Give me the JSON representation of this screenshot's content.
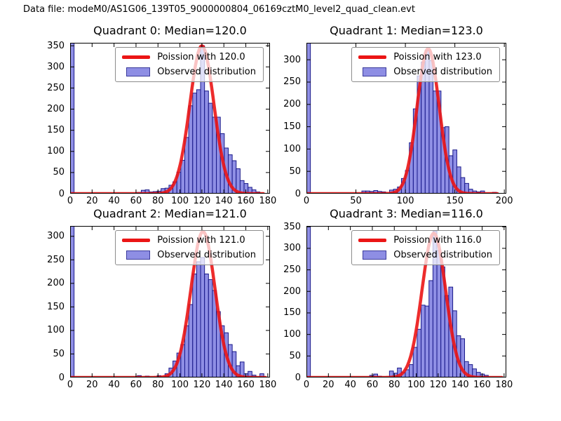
{
  "figure": {
    "title": "Data file: modeM0/AS1G06_139T05_9000000804_06169cztM0_level2_quad_clean.evt",
    "background": "#ffffff"
  },
  "colors": {
    "bar_fill": "#7b7be0",
    "bar_edge": "#1a1a8a",
    "curve": "#eb1515",
    "legend_border": "#8c8c8c",
    "axis": "#000000",
    "text": "#000000"
  },
  "chart_data": [
    {
      "type": "bar",
      "subtype": "histogram-with-fit-curve",
      "quadrant": 0,
      "title": "Quadrant 0: Median=120.0",
      "median": 120.0,
      "legend": [
        "Poission with 120.0",
        "Observed distribution"
      ],
      "legend_position": "upper right",
      "grid": false,
      "xlabel": "",
      "ylabel": "",
      "xlim": [
        0,
        182
      ],
      "ylim": [
        0,
        357
      ],
      "xticks": [
        0,
        20,
        40,
        60,
        80,
        100,
        120,
        140,
        160,
        180
      ],
      "yticks": [
        0,
        50,
        100,
        150,
        200,
        250,
        300,
        350
      ],
      "bin_width": 3.6,
      "bars": [
        [
          0,
          357
        ],
        [
          61.2,
          3
        ],
        [
          64.8,
          8
        ],
        [
          68.4,
          9
        ],
        [
          72.0,
          4
        ],
        [
          75.6,
          5
        ],
        [
          79.2,
          6
        ],
        [
          82.8,
          12
        ],
        [
          86.4,
          13
        ],
        [
          90.0,
          20
        ],
        [
          93.6,
          28
        ],
        [
          97.2,
          51
        ],
        [
          100.8,
          79
        ],
        [
          104.4,
          133
        ],
        [
          108.0,
          208
        ],
        [
          111.6,
          238
        ],
        [
          115.2,
          246
        ],
        [
          118.8,
          350
        ],
        [
          122.4,
          243
        ],
        [
          126.0,
          214
        ],
        [
          129.6,
          181
        ],
        [
          133.2,
          181
        ],
        [
          136.8,
          142
        ],
        [
          140.4,
          108
        ],
        [
          144.0,
          92
        ],
        [
          147.6,
          78
        ],
        [
          151.2,
          59
        ],
        [
          154.8,
          31
        ],
        [
          158.4,
          24
        ],
        [
          162.0,
          15
        ],
        [
          165.6,
          9
        ],
        [
          169.2,
          4
        ]
      ],
      "curve": {
        "model": "poisson-approx",
        "lambda": 120.0,
        "peak": 350,
        "range": [
          0,
          176
        ]
      }
    },
    {
      "type": "bar",
      "subtype": "histogram-with-fit-curve",
      "quadrant": 1,
      "title": "Quadrant 1: Median=123.0",
      "median": 123.0,
      "legend": [
        "Poission with 123.0",
        "Observed distribution"
      ],
      "legend_position": "upper right",
      "grid": false,
      "xlabel": "",
      "ylabel": "",
      "xlim": [
        0,
        202
      ],
      "ylim": [
        0,
        338
      ],
      "xticks": [
        0,
        50,
        100,
        150,
        200
      ],
      "yticks": [
        0,
        50,
        100,
        150,
        200,
        250,
        300
      ],
      "bin_width": 4,
      "bars": [
        [
          0,
          338
        ],
        [
          56,
          6
        ],
        [
          60,
          6
        ],
        [
          64,
          5
        ],
        [
          68,
          7
        ],
        [
          72,
          5
        ],
        [
          76,
          4
        ],
        [
          84,
          8
        ],
        [
          88,
          10
        ],
        [
          92,
          15
        ],
        [
          96,
          34
        ],
        [
          100,
          52
        ],
        [
          104,
          114
        ],
        [
          108,
          190
        ],
        [
          112,
          264
        ],
        [
          116,
          295
        ],
        [
          120,
          321
        ],
        [
          124,
          298
        ],
        [
          128,
          230
        ],
        [
          132,
          230
        ],
        [
          136,
          148
        ],
        [
          140,
          150
        ],
        [
          144,
          85
        ],
        [
          148,
          98
        ],
        [
          152,
          60
        ],
        [
          156,
          36
        ],
        [
          160,
          23
        ],
        [
          164,
          10
        ],
        [
          168,
          6
        ],
        [
          172,
          4
        ],
        [
          176,
          6
        ],
        [
          188,
          3
        ]
      ],
      "curve": {
        "model": "poisson-approx",
        "lambda": 123.0,
        "peak": 325,
        "range": [
          0,
          193
        ]
      }
    },
    {
      "type": "bar",
      "subtype": "histogram-with-fit-curve",
      "quadrant": 2,
      "title": "Quadrant 2: Median=121.0",
      "median": 121.0,
      "legend": [
        "Poission with 121.0",
        "Observed distribution"
      ],
      "legend_position": "upper right",
      "grid": false,
      "xlabel": "",
      "ylabel": "",
      "xlim": [
        0,
        182
      ],
      "ylim": [
        0,
        322
      ],
      "xticks": [
        0,
        20,
        40,
        60,
        80,
        100,
        120,
        140,
        160,
        180
      ],
      "yticks": [
        0,
        50,
        100,
        150,
        200,
        250,
        300
      ],
      "bin_width": 3.6,
      "bars": [
        [
          0,
          322
        ],
        [
          61.2,
          4
        ],
        [
          68.4,
          3
        ],
        [
          79.2,
          4
        ],
        [
          86.4,
          8
        ],
        [
          90.0,
          20
        ],
        [
          93.6,
          35
        ],
        [
          97.2,
          52
        ],
        [
          100.8,
          70
        ],
        [
          104.4,
          110
        ],
        [
          108.0,
          155
        ],
        [
          111.6,
          220
        ],
        [
          115.2,
          246
        ],
        [
          118.8,
          255
        ],
        [
          122.4,
          220
        ],
        [
          126.0,
          208
        ],
        [
          129.6,
          185
        ],
        [
          133.2,
          140
        ],
        [
          136.8,
          110
        ],
        [
          140.4,
          95
        ],
        [
          144.0,
          70
        ],
        [
          147.6,
          55
        ],
        [
          151.2,
          25
        ],
        [
          154.8,
          33
        ],
        [
          158.4,
          8
        ],
        [
          162.0,
          13
        ],
        [
          165.6,
          5
        ],
        [
          172.8,
          8
        ]
      ],
      "curve": {
        "model": "poisson-approx",
        "lambda": 121.0,
        "peak": 310,
        "range": [
          0,
          178
        ]
      }
    },
    {
      "type": "bar",
      "subtype": "histogram-with-fit-curve",
      "quadrant": 3,
      "title": "Quadrant 3: Median=116.0",
      "median": 116.0,
      "legend": [
        "Poission with 116.0",
        "Observed distribution"
      ],
      "legend_position": "upper right",
      "grid": false,
      "xlabel": "",
      "ylabel": "",
      "xlim": [
        0,
        182
      ],
      "ylim": [
        0,
        352
      ],
      "xticks": [
        0,
        20,
        40,
        60,
        80,
        100,
        120,
        140,
        160,
        180
      ],
      "yticks": [
        0,
        50,
        100,
        150,
        200,
        250,
        300,
        350
      ],
      "bin_width": 3.6,
      "bars": [
        [
          0,
          352
        ],
        [
          57.6,
          5
        ],
        [
          61.2,
          8
        ],
        [
          64.8,
          3
        ],
        [
          75.6,
          15
        ],
        [
          79.2,
          10
        ],
        [
          82.8,
          22
        ],
        [
          86.4,
          12
        ],
        [
          90.0,
          18
        ],
        [
          93.6,
          30
        ],
        [
          97.2,
          70
        ],
        [
          100.8,
          112
        ],
        [
          104.4,
          168
        ],
        [
          108.0,
          166
        ],
        [
          111.6,
          225
        ],
        [
          115.2,
          340
        ],
        [
          118.8,
          295
        ],
        [
          122.4,
          257
        ],
        [
          126.0,
          190
        ],
        [
          129.6,
          210
        ],
        [
          133.2,
          155
        ],
        [
          136.8,
          97
        ],
        [
          140.4,
          90
        ],
        [
          144.0,
          37
        ],
        [
          147.6,
          30
        ],
        [
          151.2,
          20
        ],
        [
          154.8,
          12
        ],
        [
          158.4,
          8
        ],
        [
          162.0,
          5
        ]
      ],
      "curve": {
        "model": "poisson-approx",
        "lambda": 116.0,
        "peak": 335,
        "range": [
          0,
          178
        ]
      }
    }
  ]
}
